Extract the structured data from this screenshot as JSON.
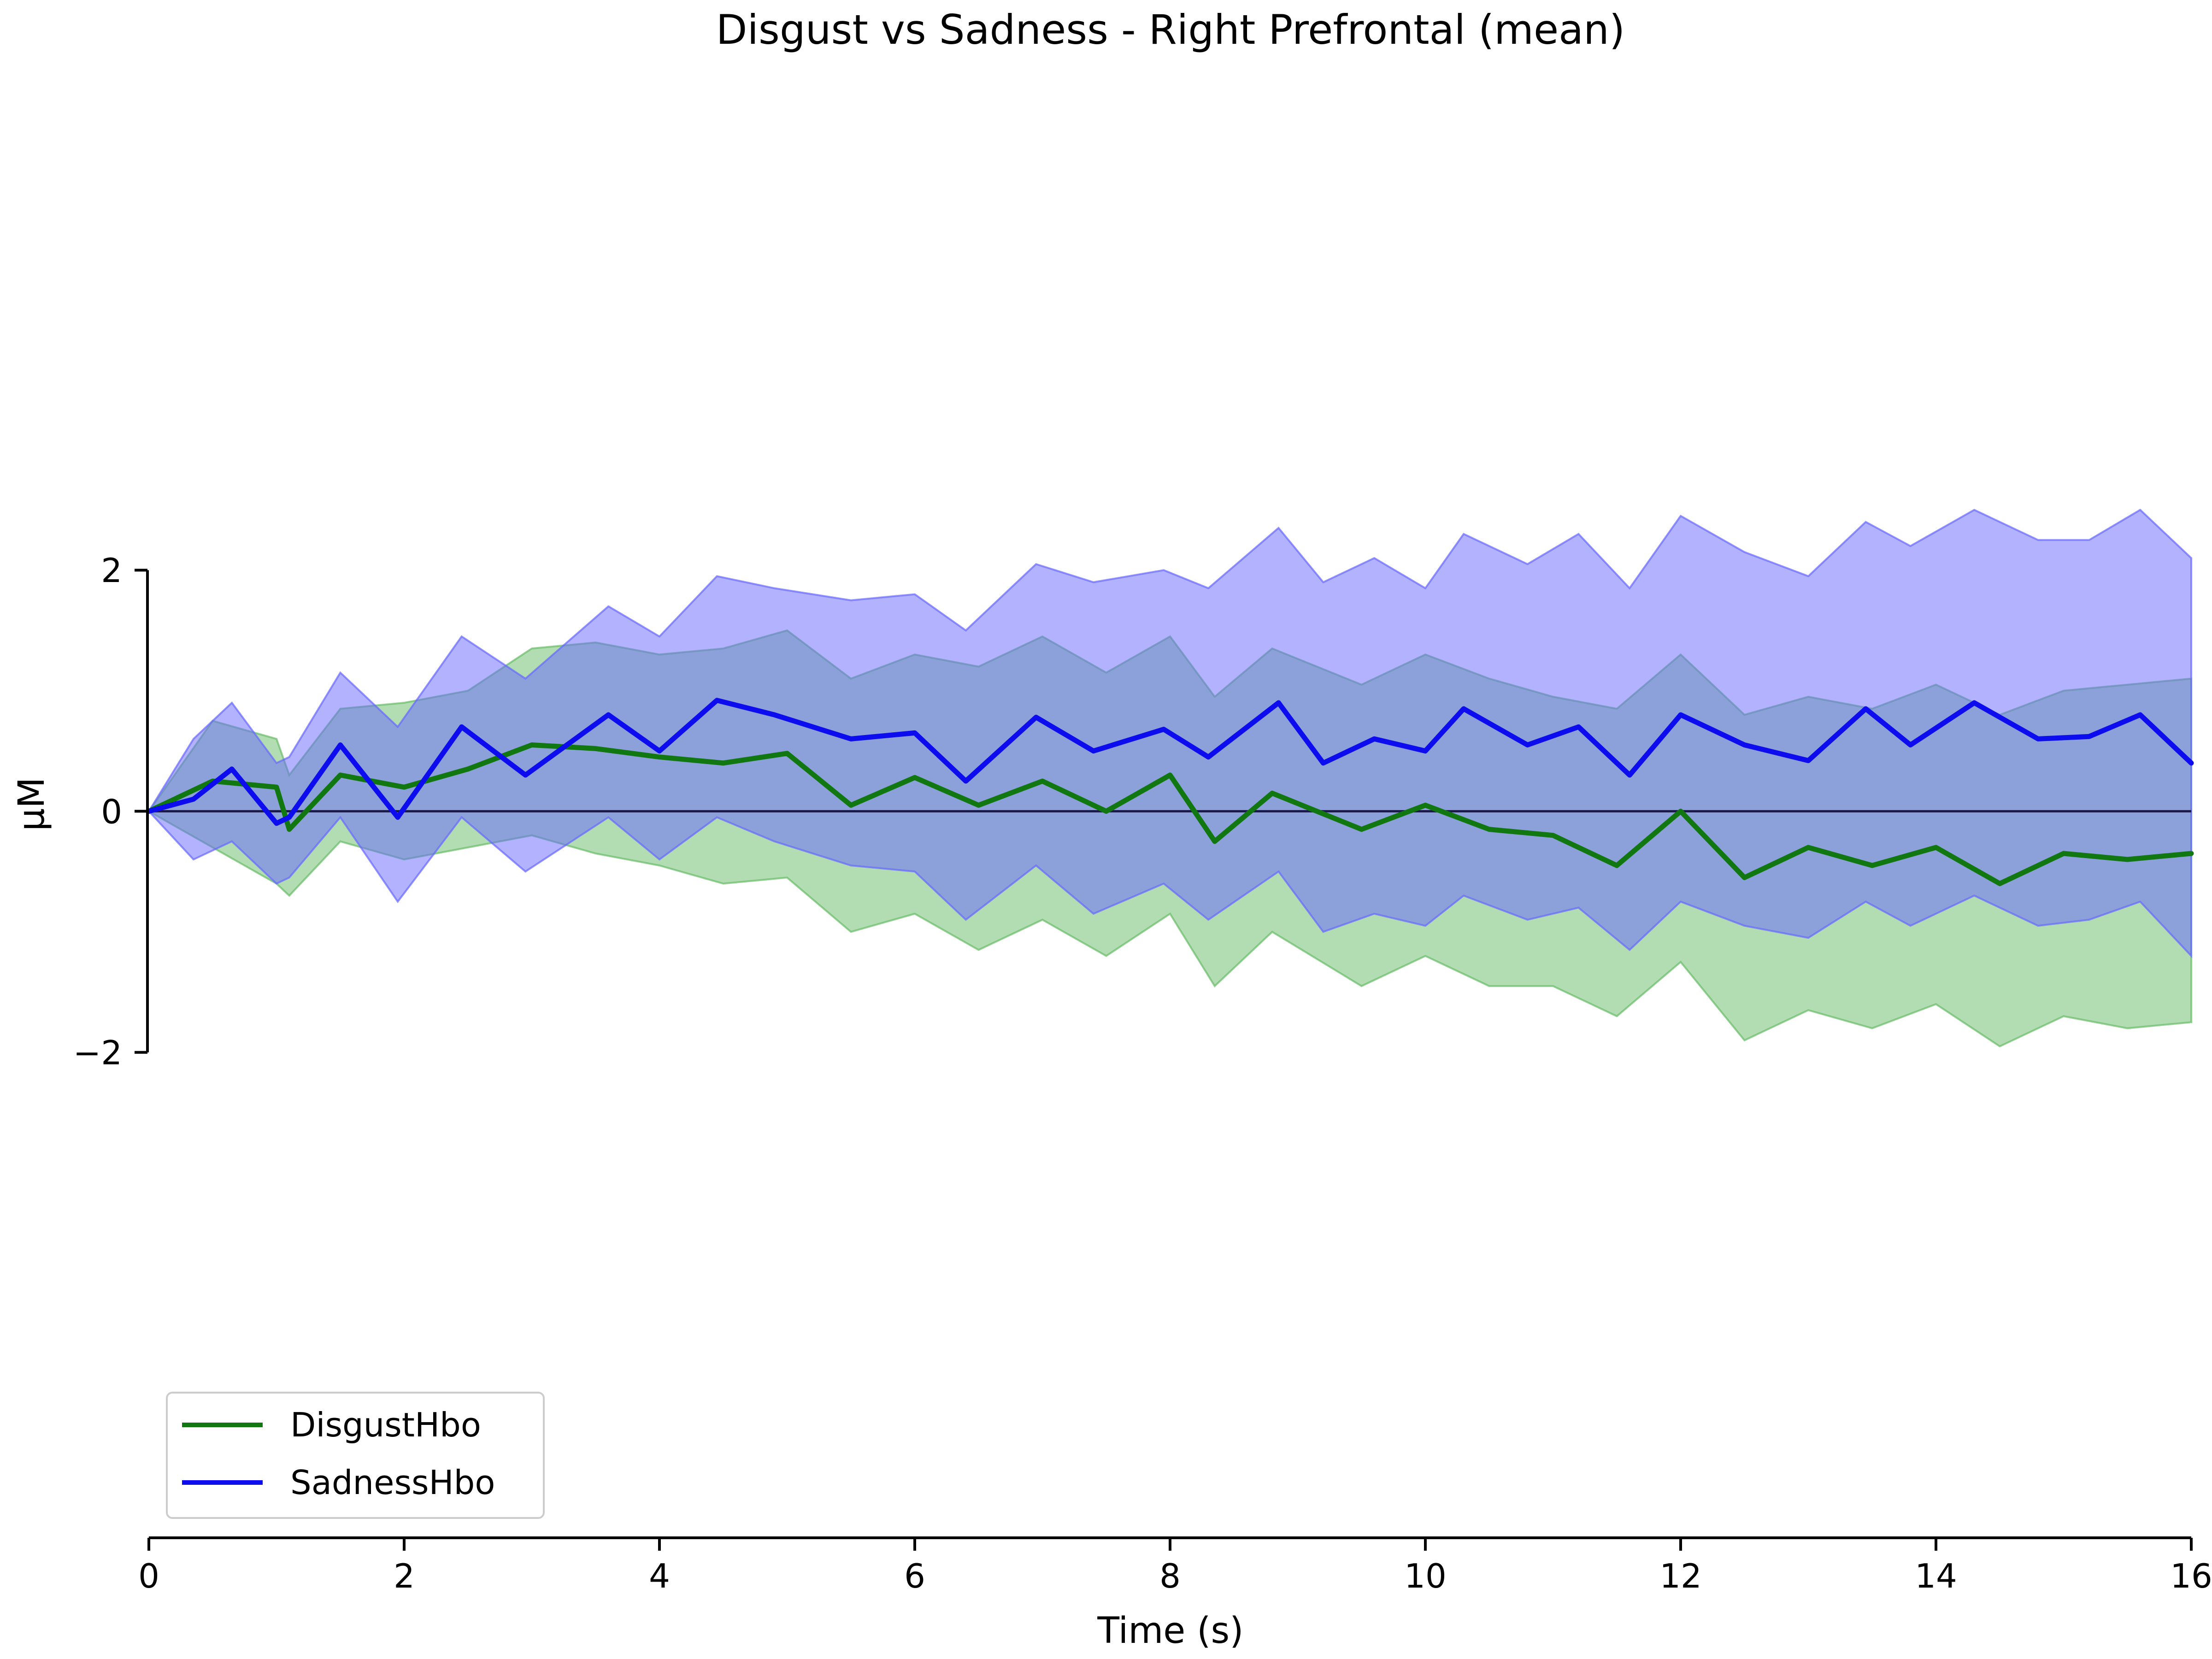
{
  "chart_data": {
    "type": "line",
    "title": "Disgust vs Sadness - Right Prefrontal (mean)",
    "xlabel": "Time (s)",
    "ylabel": "μM",
    "xlim": [
      0,
      16
    ],
    "ylim": [
      -6,
      6.5
    ],
    "xticks": [
      0,
      2,
      4,
      6,
      8,
      10,
      12,
      14,
      16
    ],
    "xtick_labels": [
      "0",
      "2",
      "4",
      "6",
      "8",
      "10",
      "12",
      "14",
      "16"
    ],
    "yticks": [
      -2,
      0,
      2
    ],
    "ytick_labels": [
      "−2",
      "0",
      "2"
    ],
    "zero_line": true,
    "grid": false,
    "legend_position": "lower-left",
    "series": [
      {
        "name": "DisgustHbo",
        "color": "#117711",
        "fill_color": "#66bb66",
        "x": [
          0,
          0.5,
          1.0,
          1.1,
          1.5,
          2.0,
          2.5,
          3.0,
          3.5,
          4.0,
          4.5,
          5.0,
          5.5,
          6.0,
          6.5,
          7.0,
          7.5,
          8.0,
          8.35,
          8.8,
          9.5,
          10.0,
          10.5,
          11.0,
          11.5,
          12.0,
          12.5,
          13.0,
          13.5,
          14.0,
          14.5,
          15.0,
          15.5,
          16.0
        ],
        "mean": [
          0.0,
          0.25,
          0.2,
          -0.15,
          0.3,
          0.2,
          0.35,
          0.55,
          0.52,
          0.45,
          0.4,
          0.48,
          0.05,
          0.28,
          0.05,
          0.25,
          0.0,
          0.3,
          -0.25,
          0.15,
          -0.15,
          0.05,
          -0.15,
          -0.2,
          -0.45,
          0.0,
          -0.55,
          -0.3,
          -0.45,
          -0.3,
          -0.6,
          -0.35,
          -0.4,
          -0.35
        ],
        "upper": [
          0.0,
          0.75,
          0.6,
          0.3,
          0.85,
          0.9,
          1.0,
          1.35,
          1.4,
          1.3,
          1.35,
          1.5,
          1.1,
          1.3,
          1.2,
          1.45,
          1.15,
          1.45,
          0.95,
          1.35,
          1.05,
          1.3,
          1.1,
          0.95,
          0.85,
          1.3,
          0.8,
          0.95,
          0.85,
          1.05,
          0.8,
          1.0,
          1.05,
          1.1
        ],
        "lower": [
          0.0,
          -0.3,
          -0.6,
          -0.7,
          -0.25,
          -0.4,
          -0.3,
          -0.2,
          -0.35,
          -0.45,
          -0.6,
          -0.55,
          -1.0,
          -0.85,
          -1.15,
          -0.9,
          -1.2,
          -0.85,
          -1.45,
          -1.0,
          -1.45,
          -1.2,
          -1.45,
          -1.45,
          -1.7,
          -1.25,
          -1.9,
          -1.65,
          -1.8,
          -1.6,
          -1.95,
          -1.7,
          -1.8,
          -1.75
        ]
      },
      {
        "name": "SadnessHbo",
        "color": "#0c0cee",
        "fill_color": "#6666ff",
        "x": [
          0,
          0.35,
          0.65,
          1.0,
          1.1,
          1.5,
          1.95,
          2.45,
          2.95,
          3.6,
          4.0,
          4.45,
          4.9,
          5.5,
          6.0,
          6.4,
          6.95,
          7.4,
          7.95,
          8.3,
          8.85,
          9.2,
          9.6,
          10.0,
          10.3,
          10.8,
          11.2,
          11.6,
          12.0,
          12.5,
          13.0,
          13.45,
          13.8,
          14.3,
          14.8,
          15.2,
          15.6,
          16.0
        ],
        "mean": [
          0.0,
          0.1,
          0.35,
          -0.1,
          -0.05,
          0.55,
          -0.05,
          0.7,
          0.3,
          0.8,
          0.5,
          0.92,
          0.8,
          0.6,
          0.65,
          0.25,
          0.78,
          0.5,
          0.68,
          0.45,
          0.9,
          0.4,
          0.6,
          0.5,
          0.85,
          0.55,
          0.7,
          0.3,
          0.8,
          0.55,
          0.42,
          0.85,
          0.55,
          0.9,
          0.6,
          0.62,
          0.8,
          0.4
        ],
        "upper": [
          0.0,
          0.6,
          0.9,
          0.4,
          0.45,
          1.15,
          0.7,
          1.45,
          1.1,
          1.7,
          1.45,
          1.95,
          1.85,
          1.75,
          1.8,
          1.5,
          2.05,
          1.9,
          2.0,
          1.85,
          2.35,
          1.9,
          2.1,
          1.85,
          2.3,
          2.05,
          2.3,
          1.85,
          2.45,
          2.15,
          1.95,
          2.4,
          2.2,
          2.5,
          2.25,
          2.25,
          2.5,
          2.1
        ],
        "lower": [
          0.0,
          -0.4,
          -0.25,
          -0.6,
          -0.55,
          -0.05,
          -0.75,
          -0.05,
          -0.5,
          -0.05,
          -0.4,
          -0.05,
          -0.25,
          -0.45,
          -0.5,
          -0.9,
          -0.45,
          -0.85,
          -0.6,
          -0.9,
          -0.5,
          -1.0,
          -0.85,
          -0.95,
          -0.7,
          -0.9,
          -0.8,
          -1.15,
          -0.75,
          -0.95,
          -1.05,
          -0.75,
          -0.95,
          -0.7,
          -0.95,
          -0.9,
          -0.75,
          -1.2
        ]
      }
    ]
  }
}
